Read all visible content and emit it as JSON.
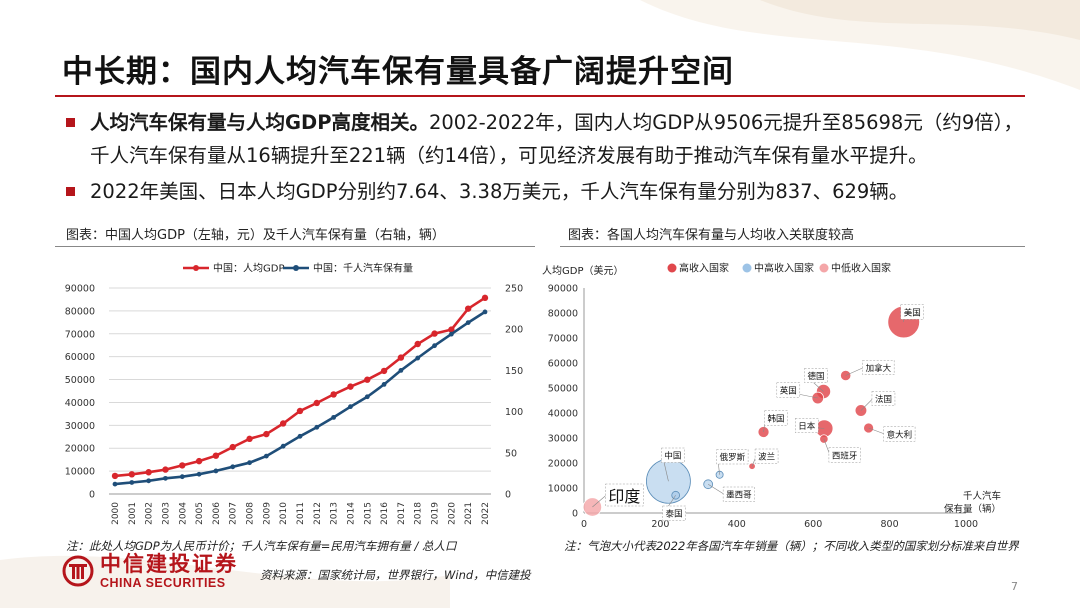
{
  "slide": {
    "title": "中长期：国内人均汽车保有量具备广阔提升空间",
    "bullet1_bold": "人均汽车保有量与人均GDP高度相关。",
    "bullet1_text": "2002-2022年，国内人均GDP从9506元提升至85698元（约9倍），千人汽车保有量从16辆提升至221辆（约14倍），可见经济发展有助于推动汽车保有量水平提升。",
    "bullet2_text": "2022年美国、日本人均GDP分别约7.64、3.38万美元，千人汽车保有量分别为837、629辆。",
    "left_figure_title": "图表：中国人均GDP（左轴，元）及千人汽车保有量（右轴，辆）",
    "right_figure_title": "图表：各国人均汽车保有量与人均收入关联度较高",
    "left_note": "注：此处人均GDP为人民币计价；千人汽车保有量=民用汽车拥有量 / 总人口",
    "right_note": "注：气泡大小代表2022年各国汽车年销量（辆）；不同收入类型的国家划分标准来自世界",
    "source": "资料来源：国家统计局，世界银行，Wind，中信建投",
    "logo_cn": "中信建投证券",
    "logo_en": "CHINA SECURITIES",
    "page_number": "7"
  },
  "colors": {
    "accent": "#b5151b",
    "gdp_line": "#d8262c",
    "car_line": "#1f4e79",
    "high_income": "#e0474c",
    "upper_middle_income": "#9dc3e6",
    "lower_middle_income": "#f4a6a8"
  },
  "chart_data": [
    {
      "type": "line",
      "x": [
        "2000",
        "2001",
        "2002",
        "2003",
        "2004",
        "2005",
        "2006",
        "2007",
        "2008",
        "2009",
        "2010",
        "2011",
        "2012",
        "2013",
        "2014",
        "2015",
        "2016",
        "2017",
        "2018",
        "2019",
        "2020",
        "2021",
        "2022"
      ],
      "series": [
        {
          "name": "中国：人均GDP",
          "axis": "left",
          "values": [
            7900,
            8600,
            9506,
            10666,
            12487,
            14368,
            16738,
            20494,
            24100,
            26180,
            30808,
            36277,
            39771,
            43497,
            46912,
            49922,
            53783,
            59592,
            65534,
            70078,
            71828,
            80976,
            85698
          ]
        },
        {
          "name": "中国：千人汽车保有量",
          "axis": "right",
          "values": [
            12,
            14,
            16,
            19,
            21,
            24,
            28,
            33,
            38,
            46,
            58,
            70,
            81,
            93,
            106,
            118,
            133,
            150,
            165,
            180,
            194,
            208,
            221
          ]
        }
      ],
      "ylim_left": [
        0,
        90000
      ],
      "yticks_left": [
        "0",
        "10000",
        "20000",
        "30000",
        "40000",
        "50000",
        "60000",
        "70000",
        "80000",
        "90000"
      ],
      "ylim_right": [
        0,
        250
      ],
      "yticks_right": [
        "0",
        "50",
        "100",
        "150",
        "200",
        "250"
      ],
      "grid": true,
      "legend": "top"
    },
    {
      "type": "scatter",
      "ylabel": "人均GDP（美元）",
      "xlabel": "千人汽车保有量（辆）",
      "xlim": [
        0,
        1000
      ],
      "xticks": [
        "0",
        "200",
        "400",
        "600",
        "800",
        "1000"
      ],
      "ylim": [
        0,
        90000
      ],
      "yticks": [
        "0",
        "10000",
        "20000",
        "30000",
        "40000",
        "50000",
        "60000",
        "70000",
        "80000",
        "90000"
      ],
      "legend_entries": [
        "高收入国家",
        "中高收入国家",
        "中低收入国家"
      ],
      "legend": "top",
      "points": [
        {
          "label": "美国",
          "group": "高收入国家",
          "x": 837,
          "y": 76400,
          "size": 14000000
        },
        {
          "label": "加拿大",
          "group": "高收入国家",
          "x": 685,
          "y": 55000,
          "size": 1500000
        },
        {
          "label": "德国",
          "group": "高收入国家",
          "x": 627,
          "y": 48600,
          "size": 2800000
        },
        {
          "label": "英国",
          "group": "高收入国家",
          "x": 612,
          "y": 46000,
          "size": 1900000
        },
        {
          "label": "法国",
          "group": "高收入国家",
          "x": 725,
          "y": 41000,
          "size": 1900000
        },
        {
          "label": "日本",
          "group": "高收入国家",
          "x": 629,
          "y": 33800,
          "size": 4200000
        },
        {
          "label": "意大利",
          "group": "高收入国家",
          "x": 745,
          "y": 34000,
          "size": 1400000
        },
        {
          "label": "西班牙",
          "group": "高收入国家",
          "x": 628,
          "y": 29600,
          "size": 1000000
        },
        {
          "label": "韩国",
          "group": "高收入国家",
          "x": 470,
          "y": 32400,
          "size": 1700000
        },
        {
          "label": "波兰",
          "group": "高收入国家",
          "x": 440,
          "y": 18700,
          "size": 600000
        },
        {
          "label": "中国",
          "group": "中高收入国家",
          "x": 221,
          "y": 12700,
          "size": 26800000
        },
        {
          "label": "俄罗斯",
          "group": "中高收入国家",
          "x": 355,
          "y": 15300,
          "size": 700000
        },
        {
          "label": "墨西哥",
          "group": "中高收入国家",
          "x": 325,
          "y": 11500,
          "size": 1100000
        },
        {
          "label": "泰国",
          "group": "中高收入国家",
          "x": 240,
          "y": 7100,
          "size": 850000
        },
        {
          "label": "印度",
          "group": "中低收入国家",
          "x": 22,
          "y": 2400,
          "size": 4700000
        }
      ]
    }
  ]
}
